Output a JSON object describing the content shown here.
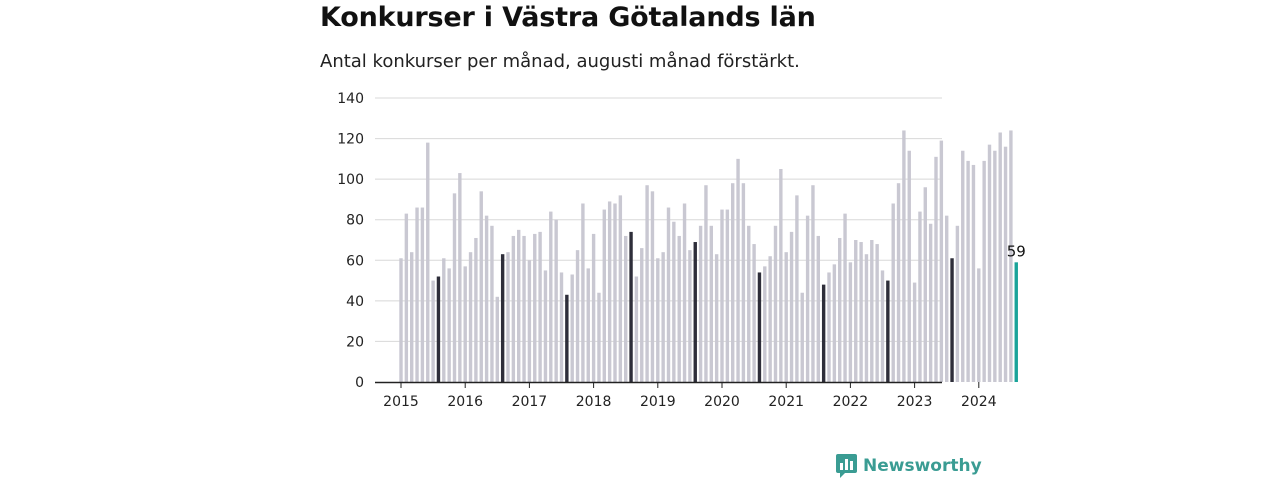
{
  "header": {
    "title": "Konkurser i Västra Götalands län",
    "subtitle": "Antal konkurser per månad, augusti månad förstärkt."
  },
  "brand": {
    "name": "Newsworthy",
    "color": "#3a9c93",
    "icon": "bar-chart-speech-bubble-icon"
  },
  "colors": {
    "bar": "#c9c8d2",
    "highlight_august": "#2e2e3a",
    "latest": "#1aa39a",
    "grid": "#d8d8d8",
    "axis": "#222222"
  },
  "chart_data": {
    "type": "bar",
    "title": "Konkurser i Västra Götalands län",
    "subtitle": "Antal konkurser per månad, augusti månad förstärkt.",
    "ylim": [
      0,
      140
    ],
    "yticks": [
      0,
      20,
      40,
      60,
      80,
      100,
      120,
      140
    ],
    "xticks": [
      "2015",
      "2016",
      "2017",
      "2018",
      "2019",
      "2020",
      "2021",
      "2022",
      "2023",
      "2024"
    ],
    "grid": true,
    "start_period": "2015-01",
    "highlight": "augusti",
    "annotation": {
      "period": "2024-08",
      "label": "59"
    },
    "values": [
      61,
      83,
      64,
      86,
      86,
      118,
      50,
      52,
      61,
      56,
      93,
      103,
      57,
      64,
      71,
      94,
      82,
      77,
      42,
      63,
      64,
      72,
      75,
      72,
      60,
      73,
      74,
      55,
      84,
      80,
      54,
      43,
      53,
      65,
      88,
      56,
      73,
      44,
      85,
      89,
      88,
      92,
      72,
      74,
      52,
      66,
      97,
      94,
      61,
      64,
      86,
      79,
      72,
      88,
      65,
      69,
      77,
      97,
      77,
      63,
      85,
      85,
      98,
      110,
      98,
      77,
      68,
      54,
      57,
      62,
      77,
      105,
      64,
      74,
      92,
      44,
      82,
      97,
      72,
      48,
      54,
      58,
      71,
      83,
      59,
      70,
      69,
      63,
      70,
      68,
      55,
      50,
      88,
      98,
      124,
      114,
      49,
      84,
      96,
      78,
      111,
      119,
      82,
      61,
      77,
      114,
      109,
      107,
      56,
      109,
      117,
      114,
      123,
      116,
      124,
      59
    ]
  }
}
